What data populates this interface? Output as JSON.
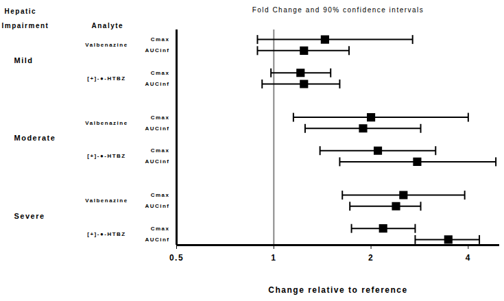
{
  "chart_data": {
    "type": "forest",
    "title": "Fold Change and 90% confidence intervals",
    "xlabel": "Change relative to reference",
    "group_header": "Hepatic Impairment",
    "analyte_header": "Analyte",
    "log": "x",
    "xlim": [
      0.5,
      5
    ],
    "xticks": [
      0.5,
      1,
      2,
      4
    ],
    "reference": 1,
    "color": "#000000",
    "marker": "square",
    "groups": [
      {
        "name": "Mild",
        "analytes": [
          {
            "name": "Valbenazine",
            "metrics": [
              {
                "name": "Cmax",
                "value": 1.44,
                "lower": 0.89,
                "upper": 2.69
              },
              {
                "name": "AUCinf",
                "value": 1.24,
                "lower": 0.89,
                "upper": 1.71
              }
            ]
          },
          {
            "name": "[+]-●-HTBZ",
            "metrics": [
              {
                "name": "Cmax",
                "value": 1.21,
                "lower": 0.98,
                "upper": 1.5
              },
              {
                "name": "AUCinf",
                "value": 1.24,
                "lower": 0.92,
                "upper": 1.6
              }
            ]
          }
        ]
      },
      {
        "name": "Moderate",
        "analytes": [
          {
            "name": "Valbenazine",
            "metrics": [
              {
                "name": "Cmax",
                "value": 2.0,
                "lower": 1.15,
                "upper": 4.0
              },
              {
                "name": "AUCinf",
                "value": 1.89,
                "lower": 1.25,
                "upper": 2.85
              }
            ]
          },
          {
            "name": "[+]-●-HTBZ",
            "metrics": [
              {
                "name": "Cmax",
                "value": 2.1,
                "lower": 1.39,
                "upper": 3.17
              },
              {
                "name": "AUCinf",
                "value": 2.78,
                "lower": 1.6,
                "upper": 4.87
              }
            ]
          }
        ]
      },
      {
        "name": "Severe",
        "analytes": [
          {
            "name": "Valbenazine",
            "metrics": [
              {
                "name": "Cmax",
                "value": 2.52,
                "lower": 1.63,
                "upper": 3.9
              },
              {
                "name": "AUCinf",
                "value": 2.39,
                "lower": 1.72,
                "upper": 2.85
              }
            ]
          },
          {
            "name": "[+]-●-HTBZ",
            "metrics": [
              {
                "name": "Cmax",
                "value": 2.18,
                "lower": 1.74,
                "upper": 2.74
              },
              {
                "name": "AUCinf",
                "value": 3.47,
                "lower": 2.74,
                "upper": 4.33
              }
            ]
          }
        ]
      }
    ]
  }
}
